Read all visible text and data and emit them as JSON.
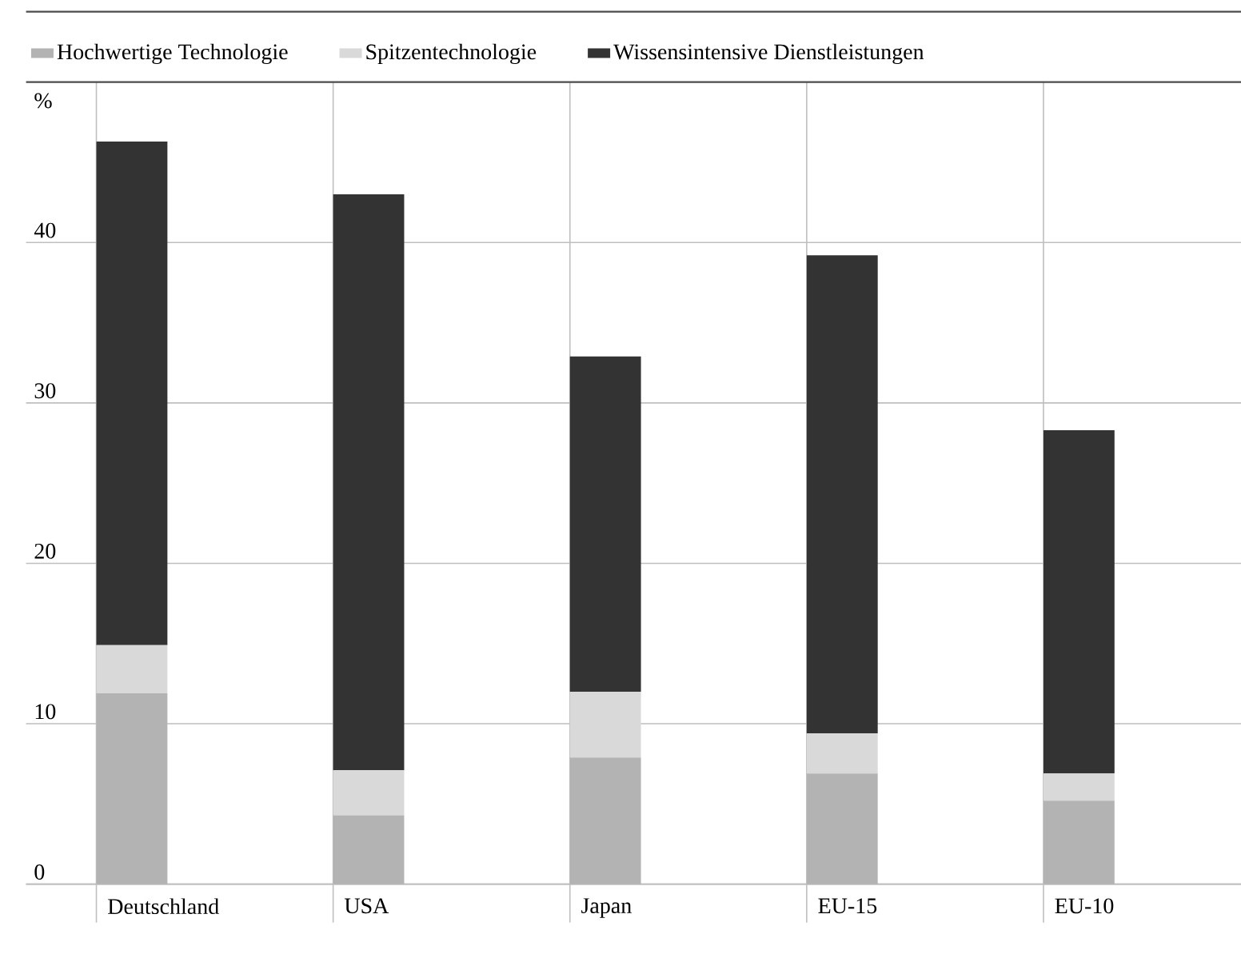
{
  "chart_data": {
    "type": "bar",
    "stacked": true,
    "ylabel": "%",
    "categories": [
      "Deutschland",
      "USA",
      "Japan",
      "EU-15",
      "EU-10"
    ],
    "series": [
      {
        "name": "Hochwertige Technologie",
        "color": "#b3b3b3",
        "values": [
          11.9,
          4.3,
          7.9,
          6.9,
          5.2
        ]
      },
      {
        "name": "Spitzentechnologie",
        "color": "#d9d9d9",
        "values": [
          3.0,
          2.8,
          4.1,
          2.5,
          1.7
        ]
      },
      {
        "name": "Wissensintensive Dienstleistungen",
        "color": "#333333",
        "values": [
          31.4,
          35.9,
          20.9,
          29.8,
          21.4
        ]
      }
    ],
    "ylim": [
      0,
      50
    ],
    "yticks": [
      0,
      10,
      20,
      30,
      40
    ],
    "grid": true,
    "legend": "top left"
  }
}
